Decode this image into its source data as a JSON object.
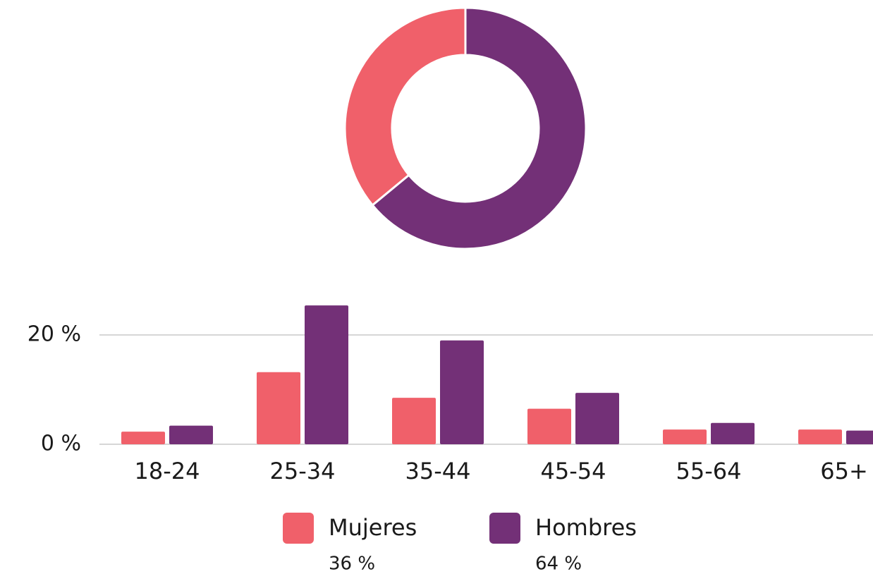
{
  "chart_data": [
    {
      "type": "donut",
      "categories": [
        "Mujeres",
        "Hombres"
      ],
      "values": [
        36,
        64
      ],
      "value_labels": [
        "36 %",
        "64 %"
      ],
      "colors": [
        "#f0606a",
        "#733077"
      ]
    },
    {
      "type": "bar",
      "categories": [
        "18-24",
        "25-34",
        "35-44",
        "45-54",
        "55-64",
        "65+"
      ],
      "series": [
        {
          "name": "Mujeres",
          "color": "#f0606a",
          "values": [
            2.3,
            13.2,
            8.5,
            6.5,
            2.7,
            2.7
          ]
        },
        {
          "name": "Hombres",
          "color": "#733077",
          "values": [
            3.4,
            25.4,
            19.0,
            9.4,
            3.9,
            2.5
          ]
        }
      ],
      "ylim": [
        0,
        27
      ],
      "yticks": [
        {
          "value": 0,
          "label": "0 %"
        },
        {
          "value": 20,
          "label": "20 %"
        }
      ],
      "grid": true
    }
  ]
}
